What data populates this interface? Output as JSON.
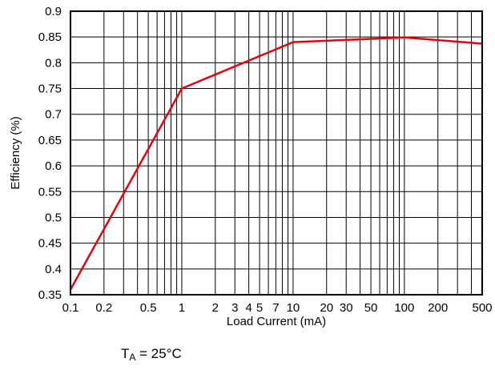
{
  "chart_data": {
    "type": "line",
    "title": "",
    "xlabel": "Load Current (mA)",
    "ylabel": "Efficiency (%)",
    "xscale": "log",
    "xlim": [
      0.1,
      500
    ],
    "ylim": [
      0.35,
      0.9
    ],
    "grid": true,
    "x_ticks": [
      {
        "value": 0.1,
        "label": "0.1"
      },
      {
        "value": 0.2,
        "label": "0.2"
      },
      {
        "value": 0.5,
        "label": "0.5"
      },
      {
        "value": 1,
        "label": "1"
      },
      {
        "value": 2,
        "label": "2"
      },
      {
        "value": 3,
        "label": "3"
      },
      {
        "value": 4,
        "label": "4"
      },
      {
        "value": 5,
        "label": "5"
      },
      {
        "value": 7,
        "label": "7"
      },
      {
        "value": 10,
        "label": "10"
      },
      {
        "value": 20,
        "label": "20"
      },
      {
        "value": 30,
        "label": "30"
      },
      {
        "value": 50,
        "label": "50"
      },
      {
        "value": 100,
        "label": "100"
      },
      {
        "value": 200,
        "label": "200"
      },
      {
        "value": 500,
        "label": "500"
      }
    ],
    "y_ticks": [
      {
        "value": 0.35,
        "label": "0.35"
      },
      {
        "value": 0.4,
        "label": "0.4"
      },
      {
        "value": 0.45,
        "label": "0.45"
      },
      {
        "value": 0.5,
        "label": "0.5"
      },
      {
        "value": 0.55,
        "label": "0.55"
      },
      {
        "value": 0.6,
        "label": "0.6"
      },
      {
        "value": 0.65,
        "label": "0.65"
      },
      {
        "value": 0.7,
        "label": "0.7"
      },
      {
        "value": 0.75,
        "label": "0.75"
      },
      {
        "value": 0.8,
        "label": "0.8"
      },
      {
        "value": 0.85,
        "label": "0.85"
      },
      {
        "value": 0.9,
        "label": "0.9"
      }
    ],
    "series": [
      {
        "color": "#e8000b",
        "x": [
          0.1,
          1,
          10,
          100,
          500
        ],
        "y": [
          0.36,
          0.75,
          0.84,
          0.849,
          0.837
        ]
      }
    ]
  },
  "annotation": {
    "symbol": "T",
    "subscript": "A",
    "text": " = 25°C"
  }
}
